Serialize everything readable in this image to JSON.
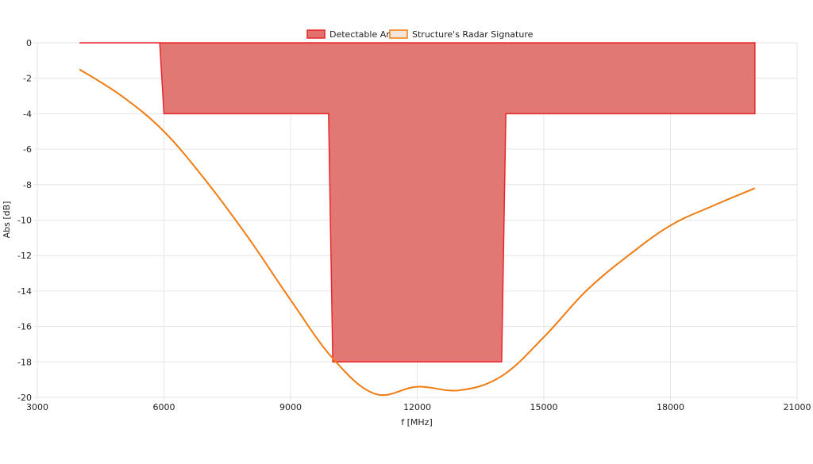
{
  "chart_data": {
    "type": "area",
    "xlabel": "f [MHz]",
    "ylabel": "Abs [dB]",
    "xlim": [
      3000,
      21000
    ],
    "ylim": [
      -20,
      0
    ],
    "x_ticks": [
      3000,
      6000,
      9000,
      12000,
      15000,
      18000,
      21000
    ],
    "y_ticks": [
      0,
      -2,
      -4,
      -6,
      -8,
      -10,
      -12,
      -14,
      -16,
      -18,
      -20
    ],
    "grid": true,
    "legend_position": "top-center",
    "series": [
      {
        "name": "Detectable Area",
        "kind": "filled-area",
        "color": "#e0716b",
        "stroke": "#e8252b",
        "points": [
          [
            4000,
            0
          ],
          [
            5900,
            0
          ],
          [
            6000,
            -4
          ],
          [
            9900,
            -4
          ],
          [
            10000,
            -18
          ],
          [
            14000,
            -18
          ],
          [
            14100,
            -4
          ],
          [
            20000,
            -4
          ],
          [
            20000,
            0
          ],
          [
            4000,
            0
          ]
        ]
      },
      {
        "name": "Structure's Radar Signature",
        "kind": "line",
        "color": "#f07c12",
        "points": [
          [
            4000,
            -1.5
          ],
          [
            5000,
            -3.0
          ],
          [
            6000,
            -5.0
          ],
          [
            7000,
            -7.8
          ],
          [
            8000,
            -11.0
          ],
          [
            9000,
            -14.5
          ],
          [
            10000,
            -17.8
          ],
          [
            11000,
            -19.8
          ],
          [
            12000,
            -19.4
          ],
          [
            13000,
            -19.6
          ],
          [
            14000,
            -18.8
          ],
          [
            15000,
            -16.6
          ],
          [
            16000,
            -14.0
          ],
          [
            17000,
            -12.0
          ],
          [
            18000,
            -10.3
          ],
          [
            19000,
            -9.2
          ],
          [
            20000,
            -8.2
          ]
        ]
      }
    ]
  }
}
